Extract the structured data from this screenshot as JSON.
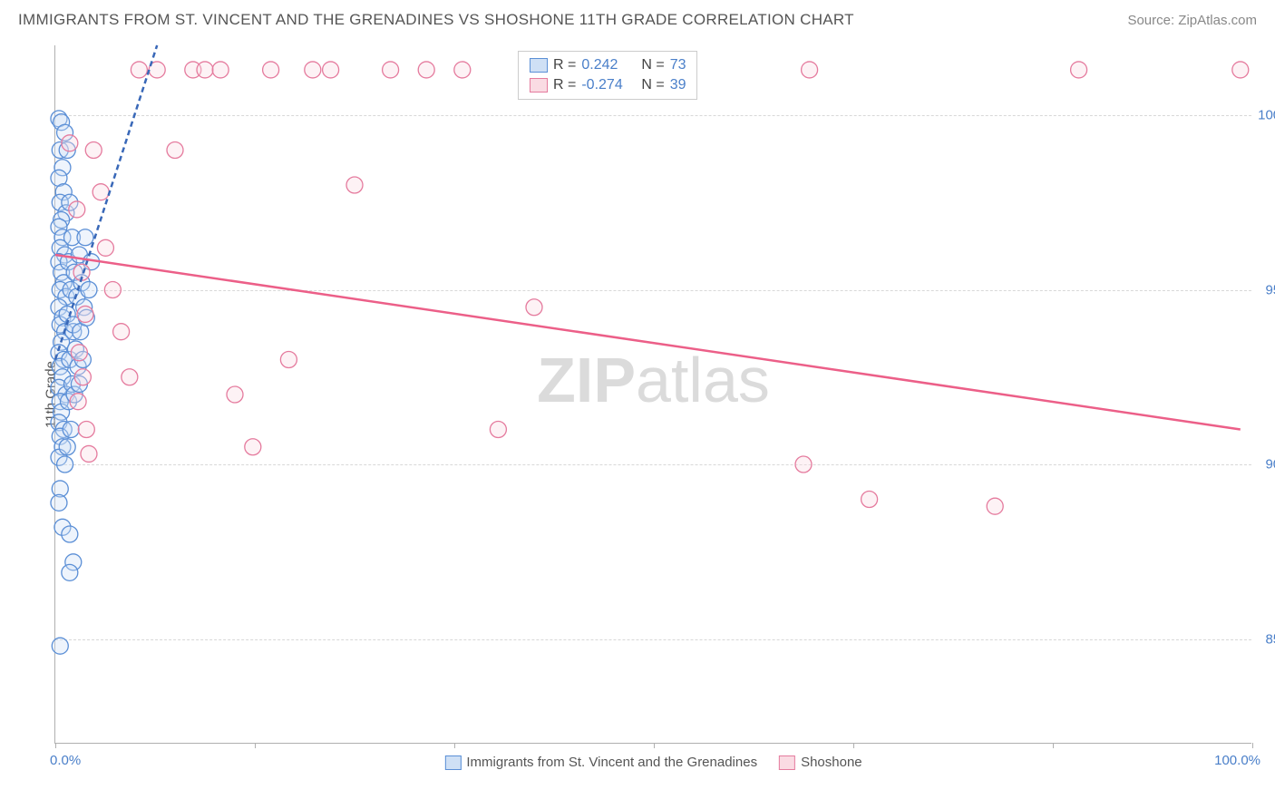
{
  "header": {
    "title": "IMMIGRANTS FROM ST. VINCENT AND THE GRENADINES VS SHOSHONE 11TH GRADE CORRELATION CHART",
    "source": "Source: ZipAtlas.com"
  },
  "chart": {
    "type": "scatter",
    "y_axis_label": "11th Grade",
    "xlim": [
      0,
      100
    ],
    "ylim": [
      82,
      102
    ],
    "x_ticks": [
      0,
      100
    ],
    "x_tick_labels": [
      "0.0%",
      "100.0%"
    ],
    "x_minor_ticks": [
      0,
      16.67,
      33.33,
      50,
      66.67,
      83.33,
      100
    ],
    "y_ticks": [
      85,
      90,
      95,
      100
    ],
    "y_tick_labels": [
      "85.0%",
      "90.0%",
      "95.0%",
      "100.0%"
    ],
    "background_color": "#ffffff",
    "grid_color": "#d8d8d8",
    "axis_color": "#b0b0b0",
    "tick_label_color": "#4a7fc9",
    "title_color": "#555555",
    "marker_radius": 9,
    "marker_opacity": 0.35,
    "title_fontsize": 17,
    "label_fontsize": 15,
    "watermark": {
      "text_bold": "ZIP",
      "text_light": "atlas",
      "color": "#cccccc",
      "fontsize": 70
    },
    "legend_top": {
      "rows": [
        {
          "swatch_fill": "#cfe0f5",
          "swatch_stroke": "#5b8fd6",
          "r_label": "R =",
          "r_value": "0.242",
          "n_label": "N =",
          "n_value": "73"
        },
        {
          "swatch_fill": "#fadbe3",
          "swatch_stroke": "#e57b9e",
          "r_label": "R =",
          "r_value": "-0.274",
          "n_label": "N =",
          "n_value": "39"
        }
      ]
    },
    "legend_bottom": [
      {
        "fill": "#cfe0f5",
        "stroke": "#5b8fd6",
        "label": "Immigrants from St. Vincent and the Grenadines"
      },
      {
        "fill": "#fadbe3",
        "stroke": "#e57b9e",
        "label": "Shoshone"
      }
    ],
    "series": [
      {
        "name": "immigrants",
        "fill": "#cfe0f5",
        "stroke": "#5b8fd6",
        "trend_color": "#3968b8",
        "trend_width": 2.5,
        "trend_dash": "6 4",
        "trend": {
          "x1": 0,
          "y1": 93.0,
          "x2": 8.5,
          "y2": 102.0
        },
        "points": [
          [
            0.3,
            99.9
          ],
          [
            0.5,
            99.8
          ],
          [
            0.8,
            99.5
          ],
          [
            0.4,
            99.0
          ],
          [
            0.6,
            98.5
          ],
          [
            0.3,
            98.2
          ],
          [
            0.7,
            97.8
          ],
          [
            0.4,
            97.5
          ],
          [
            0.9,
            97.2
          ],
          [
            0.5,
            97.0
          ],
          [
            0.3,
            96.8
          ],
          [
            0.6,
            96.5
          ],
          [
            0.4,
            96.2
          ],
          [
            0.8,
            96.0
          ],
          [
            0.3,
            95.8
          ],
          [
            0.5,
            95.5
          ],
          [
            0.7,
            95.2
          ],
          [
            0.4,
            95.0
          ],
          [
            0.9,
            94.8
          ],
          [
            0.3,
            94.5
          ],
          [
            0.6,
            94.2
          ],
          [
            0.4,
            94.0
          ],
          [
            0.8,
            93.8
          ],
          [
            0.5,
            93.5
          ],
          [
            0.3,
            93.2
          ],
          [
            0.7,
            93.0
          ],
          [
            0.4,
            92.8
          ],
          [
            0.6,
            92.5
          ],
          [
            0.3,
            92.2
          ],
          [
            0.9,
            92.0
          ],
          [
            0.4,
            91.8
          ],
          [
            0.5,
            91.5
          ],
          [
            0.3,
            91.2
          ],
          [
            0.7,
            91.0
          ],
          [
            0.4,
            90.8
          ],
          [
            0.6,
            90.5
          ],
          [
            0.3,
            90.2
          ],
          [
            0.8,
            90.0
          ],
          [
            0.4,
            89.3
          ],
          [
            0.3,
            88.9
          ],
          [
            0.6,
            88.2
          ],
          [
            1.2,
            88.0
          ],
          [
            1.5,
            87.2
          ],
          [
            1.2,
            86.9
          ],
          [
            0.4,
            84.8
          ],
          [
            1.0,
            99.0
          ],
          [
            1.2,
            97.5
          ],
          [
            1.4,
            96.5
          ],
          [
            1.1,
            95.8
          ],
          [
            1.3,
            95.0
          ],
          [
            1.0,
            94.3
          ],
          [
            1.5,
            93.8
          ],
          [
            1.2,
            93.0
          ],
          [
            1.4,
            92.3
          ],
          [
            1.1,
            91.8
          ],
          [
            1.3,
            91.0
          ],
          [
            1.0,
            90.5
          ],
          [
            1.6,
            95.5
          ],
          [
            1.8,
            94.8
          ],
          [
            1.5,
            94.0
          ],
          [
            1.7,
            93.3
          ],
          [
            1.9,
            92.8
          ],
          [
            1.6,
            92.0
          ],
          [
            2.0,
            96.0
          ],
          [
            2.2,
            95.2
          ],
          [
            2.4,
            94.5
          ],
          [
            2.1,
            93.8
          ],
          [
            2.3,
            93.0
          ],
          [
            2.0,
            92.3
          ],
          [
            2.5,
            96.5
          ],
          [
            2.8,
            95.0
          ],
          [
            2.6,
            94.2
          ],
          [
            3.0,
            95.8
          ]
        ]
      },
      {
        "name": "shoshone",
        "fill": "#fadbe3",
        "stroke": "#e57b9e",
        "trend_color": "#ec5f88",
        "trend_width": 2.5,
        "trend_dash": "none",
        "trend": {
          "x1": 0,
          "y1": 96.0,
          "x2": 99,
          "y2": 91.0
        },
        "points": [
          [
            1.2,
            99.2
          ],
          [
            1.8,
            97.3
          ],
          [
            2.2,
            95.5
          ],
          [
            2.5,
            94.3
          ],
          [
            2.0,
            93.2
          ],
          [
            2.3,
            92.5
          ],
          [
            1.9,
            91.8
          ],
          [
            2.6,
            91.0
          ],
          [
            2.8,
            90.3
          ],
          [
            3.2,
            99.0
          ],
          [
            3.8,
            97.8
          ],
          [
            4.2,
            96.2
          ],
          [
            4.8,
            95.0
          ],
          [
            5.5,
            93.8
          ],
          [
            6.2,
            92.5
          ],
          [
            7.0,
            101.3
          ],
          [
            8.5,
            101.3
          ],
          [
            10.0,
            99.0
          ],
          [
            11.5,
            101.3
          ],
          [
            12.5,
            101.3
          ],
          [
            13.8,
            101.3
          ],
          [
            15.0,
            92.0
          ],
          [
            16.5,
            90.5
          ],
          [
            18.0,
            101.3
          ],
          [
            19.5,
            93.0
          ],
          [
            21.5,
            101.3
          ],
          [
            23.0,
            101.3
          ],
          [
            25.0,
            98.0
          ],
          [
            28.0,
            101.3
          ],
          [
            31.0,
            101.3
          ],
          [
            34.0,
            101.3
          ],
          [
            37.0,
            91.0
          ],
          [
            40.0,
            94.5
          ],
          [
            62.5,
            90.0
          ],
          [
            63.0,
            101.3
          ],
          [
            68.0,
            89.0
          ],
          [
            78.5,
            88.8
          ],
          [
            85.5,
            101.3
          ],
          [
            99.0,
            101.3
          ]
        ]
      }
    ]
  }
}
